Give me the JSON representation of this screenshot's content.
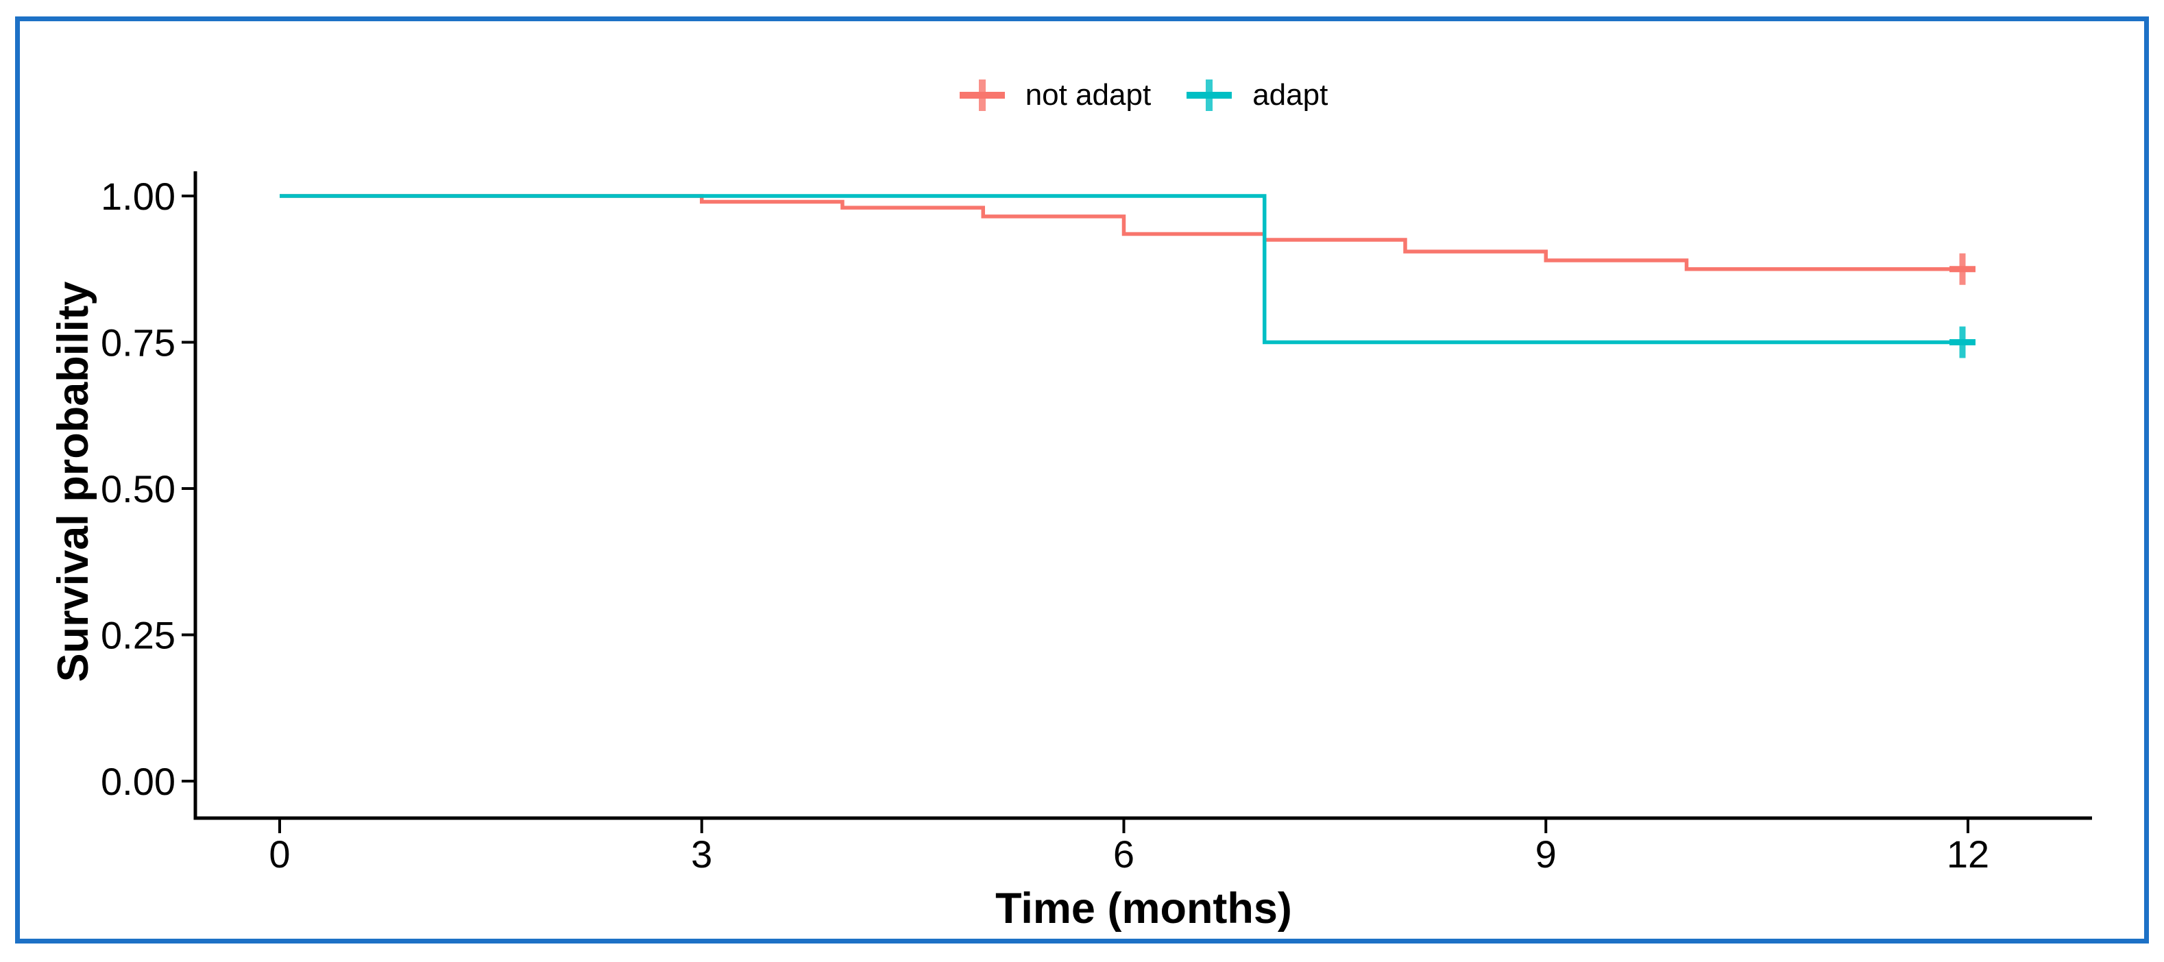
{
  "figure": {
    "background_color": "#ffffff",
    "border_color": "#1d71c6"
  },
  "legend": {
    "position": "top-center",
    "items": [
      {
        "id": "not-adapt",
        "label": "not adapt",
        "color": "#F8766D",
        "marker": "plus-censor-icon"
      },
      {
        "id": "adapt",
        "label": "adapt",
        "color": "#00BFC4",
        "marker": "plus-censor-icon"
      }
    ]
  },
  "axes": {
    "x": {
      "title": "Time (months)",
      "tick_labels": [
        "0",
        "3",
        "6",
        "9",
        "12"
      ],
      "tick_values": [
        0,
        3,
        6,
        9,
        12
      ]
    },
    "y": {
      "title": "Survival probability",
      "tick_labels": [
        "1.00",
        "0.75",
        "0.50",
        "0.25",
        "0.00"
      ],
      "tick_values": [
        1.0,
        0.75,
        0.5,
        0.25,
        0.0
      ]
    }
  },
  "chart_data": {
    "type": "line",
    "subtype": "kaplan-meier-step",
    "title": "",
    "xlabel": "Time (months)",
    "ylabel": "Survival probability",
    "xlim": [
      0,
      12.9
    ],
    "ylim": [
      0,
      1.0
    ],
    "grid": false,
    "legend_position": "top",
    "series": [
      {
        "name": "not adapt",
        "color": "#F8766D",
        "steps": [
          {
            "t": 0,
            "s": 1.0
          },
          {
            "t": 3,
            "s": 0.99
          },
          {
            "t": 4,
            "s": 0.98
          },
          {
            "t": 5,
            "s": 0.965
          },
          {
            "t": 6,
            "s": 0.935
          },
          {
            "t": 7,
            "s": 0.925
          },
          {
            "t": 8,
            "s": 0.905
          },
          {
            "t": 9,
            "s": 0.89
          },
          {
            "t": 10,
            "s": 0.875
          }
        ],
        "end_time": 12,
        "final_survival": 0.875,
        "censor_times": [
          12
        ]
      },
      {
        "name": "adapt",
        "color": "#00BFC4",
        "steps": [
          {
            "t": 0,
            "s": 1.0
          },
          {
            "t": 7,
            "s": 0.75
          }
        ],
        "end_time": 12,
        "final_survival": 0.75,
        "censor_times": [
          12
        ]
      }
    ]
  }
}
